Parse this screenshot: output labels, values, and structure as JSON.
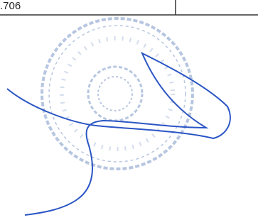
{
  "table": {
    "rows": [
      [
        ".706"
      ]
    ]
  }
}
